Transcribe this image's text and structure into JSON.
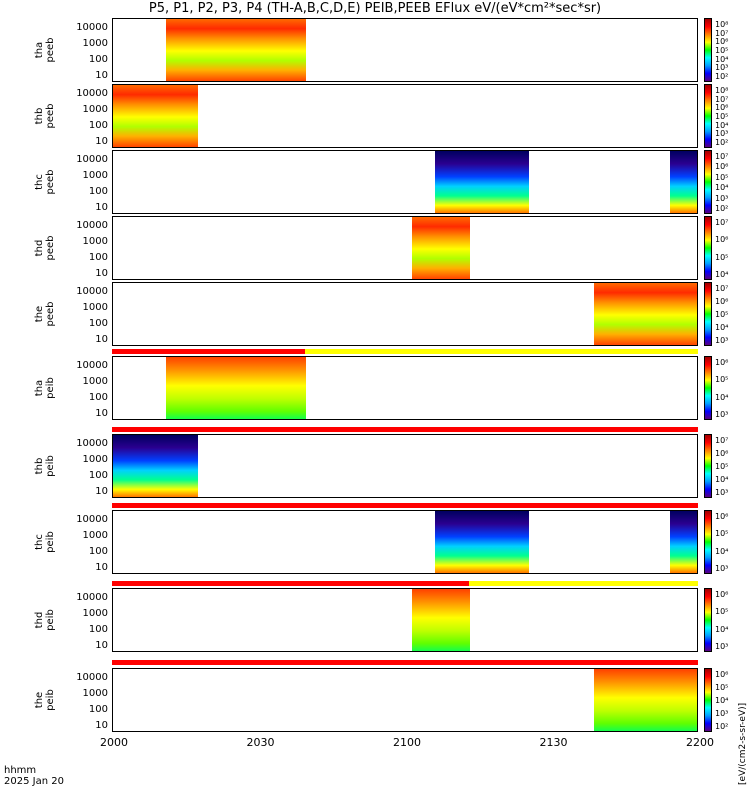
{
  "chart_data": {
    "type": "heatmap",
    "title": "P5, P1, P2, P3, P4 (TH-A,B,C,D,E) PEIB,PEEB EFlux eV/(eV*cm²*sec*sr)",
    "xlabel_line1": "hhmm",
    "xlabel_line2": "2025 Jan 20",
    "x_ticks": [
      "2000",
      "2030",
      "2100",
      "2130",
      "2200"
    ],
    "y_ticks": [
      "10000",
      "1000",
      "100",
      "10"
    ],
    "side_label": "[eV/(cm2-s-sr-eV)]",
    "panels": [
      {
        "line1": "tha",
        "line2": "peeb",
        "coverage": [
          [
            0.09,
            0.33
          ]
        ],
        "cb_ticks": [
          "10⁸",
          "10⁷",
          "10⁶",
          "10⁵",
          "10⁴",
          "10³",
          "10²"
        ]
      },
      {
        "line1": "thb",
        "line2": "peeb",
        "coverage": [
          [
            0.0,
            0.145
          ]
        ],
        "cb_ticks": [
          "10⁸",
          "10⁷",
          "10⁶",
          "10⁵",
          "10⁴",
          "10³",
          "10²"
        ]
      },
      {
        "line1": "thc",
        "line2": "peeb",
        "coverage": [
          [
            0.55,
            0.71
          ],
          [
            0.95,
            1.0
          ]
        ],
        "cb_ticks": [
          "10⁷",
          "10⁶",
          "10⁵",
          "10⁴",
          "10³",
          "10²"
        ]
      },
      {
        "line1": "thd",
        "line2": "peeb",
        "coverage": [
          [
            0.51,
            0.61
          ]
        ],
        "cb_ticks": [
          "10⁷",
          "10⁶",
          "10⁵",
          "10⁴"
        ]
      },
      {
        "line1": "the",
        "line2": "peeb",
        "coverage": [
          [
            0.82,
            1.0
          ]
        ],
        "cb_ticks": [
          "10⁷",
          "10⁶",
          "10⁵",
          "10⁴",
          "10³"
        ]
      },
      {
        "line1": "tha",
        "line2": "peib",
        "coverage": [
          [
            0.09,
            0.33
          ]
        ],
        "cb_ticks": [
          "10⁶",
          "10⁵",
          "10⁴",
          "10³"
        ]
      },
      {
        "line1": "thb",
        "line2": "peib",
        "coverage": [
          [
            0.0,
            0.145
          ]
        ],
        "cb_ticks": [
          "10⁷",
          "10⁶",
          "10⁵",
          "10⁴",
          "10³"
        ]
      },
      {
        "line1": "thc",
        "line2": "peib",
        "coverage": [
          [
            0.55,
            0.71
          ],
          [
            0.95,
            1.0
          ]
        ],
        "cb_ticks": [
          "10⁶",
          "10⁵",
          "10⁴",
          "10³"
        ]
      },
      {
        "line1": "thd",
        "line2": "peib",
        "coverage": [
          [
            0.51,
            0.61
          ]
        ],
        "cb_ticks": [
          "10⁶",
          "10⁵",
          "10⁴",
          "10³"
        ]
      },
      {
        "line1": "the",
        "line2": "peib",
        "coverage": [
          [
            0.82,
            1.0
          ]
        ],
        "cb_ticks": [
          "10⁶",
          "10⁵",
          "10⁴",
          "10³",
          "10²"
        ]
      }
    ]
  }
}
